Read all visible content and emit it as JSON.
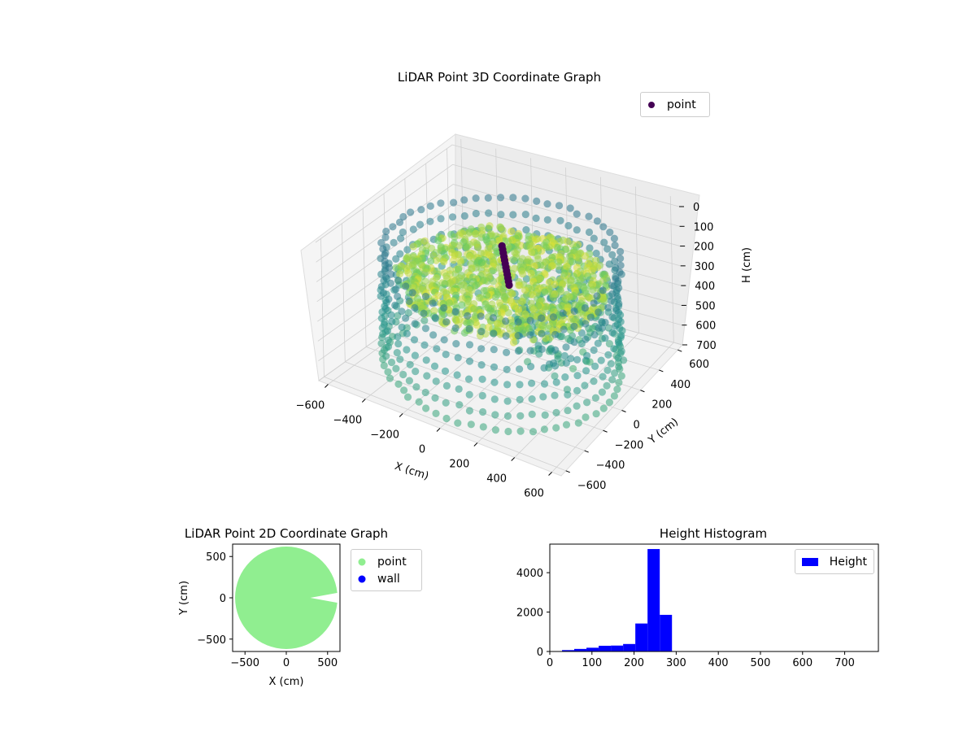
{
  "chart_data": [
    {
      "type": "scatter3d",
      "title": "LiDAR Point 3D Coordinate Graph",
      "xlabel": "X (cm)",
      "ylabel": "Y (cm)",
      "zlabel": "H (cm)",
      "xticks": [
        "−600",
        "−400",
        "−200",
        "0",
        "200",
        "400",
        "600"
      ],
      "yticks": [
        "−600",
        "−400",
        "−200",
        "0",
        "200",
        "400",
        "600"
      ],
      "zticks": [
        "0",
        "100",
        "200",
        "300",
        "400",
        "500",
        "600",
        "700"
      ],
      "xlim": [
        -650,
        650
      ],
      "ylim": [
        -650,
        650
      ],
      "zlim": [
        0,
        700
      ],
      "z_inverted": true,
      "colormap": "viridis",
      "legend": [
        {
          "label": "point",
          "color": "#440154"
        }
      ],
      "legend_position": "upper-right",
      "grid": true
    },
    {
      "type": "scatter",
      "title": "LiDAR Point 2D Coordinate Graph",
      "xlabel": "X (cm)",
      "ylabel": "Y (cm)",
      "xticks": [
        "−500",
        "0",
        "500"
      ],
      "yticks": [
        "500",
        "0",
        "−500"
      ],
      "xlim": [
        -650,
        650
      ],
      "ylim": [
        -650,
        650
      ],
      "series": [
        {
          "name": "point",
          "color": "#90ee90"
        },
        {
          "name": "wall",
          "color": "#0000ff"
        }
      ],
      "legend_position": "outside-right"
    },
    {
      "type": "bar",
      "title": "Height Histogram",
      "xticks": [
        "0",
        "100",
        "200",
        "300",
        "400",
        "500",
        "600",
        "700"
      ],
      "yticks": [
        "0",
        "2000",
        "4000"
      ],
      "xlim": [
        0,
        780
      ],
      "ylim": [
        0,
        5450
      ],
      "bin_width": 29,
      "bins": [
        {
          "x0": 0,
          "value": 20
        },
        {
          "x0": 29,
          "value": 70
        },
        {
          "x0": 58,
          "value": 130
        },
        {
          "x0": 87,
          "value": 190
        },
        {
          "x0": 116,
          "value": 290
        },
        {
          "x0": 145,
          "value": 300
        },
        {
          "x0": 174,
          "value": 380
        },
        {
          "x0": 203,
          "value": 1420
        },
        {
          "x0": 232,
          "value": 5200
        },
        {
          "x0": 261,
          "value": 1860
        },
        {
          "x0": 290,
          "value": 15
        },
        {
          "x0": 319,
          "value": 10
        },
        {
          "x0": 348,
          "value": 8
        },
        {
          "x0": 377,
          "value": 6
        },
        {
          "x0": 406,
          "value": 5
        },
        {
          "x0": 435,
          "value": 5
        },
        {
          "x0": 464,
          "value": 4
        },
        {
          "x0": 493,
          "value": 4
        },
        {
          "x0": 522,
          "value": 3
        },
        {
          "x0": 551,
          "value": 3
        },
        {
          "x0": 580,
          "value": 3
        },
        {
          "x0": 609,
          "value": 2
        },
        {
          "x0": 638,
          "value": 2
        },
        {
          "x0": 667,
          "value": 2
        },
        {
          "x0": 696,
          "value": 2
        },
        {
          "x0": 725,
          "value": 2
        },
        {
          "x0": 754,
          "value": 2
        }
      ],
      "color": "#0000ff",
      "legend": [
        {
          "label": "Height",
          "color": "#0000ff"
        }
      ],
      "legend_position": "upper-right"
    }
  ]
}
